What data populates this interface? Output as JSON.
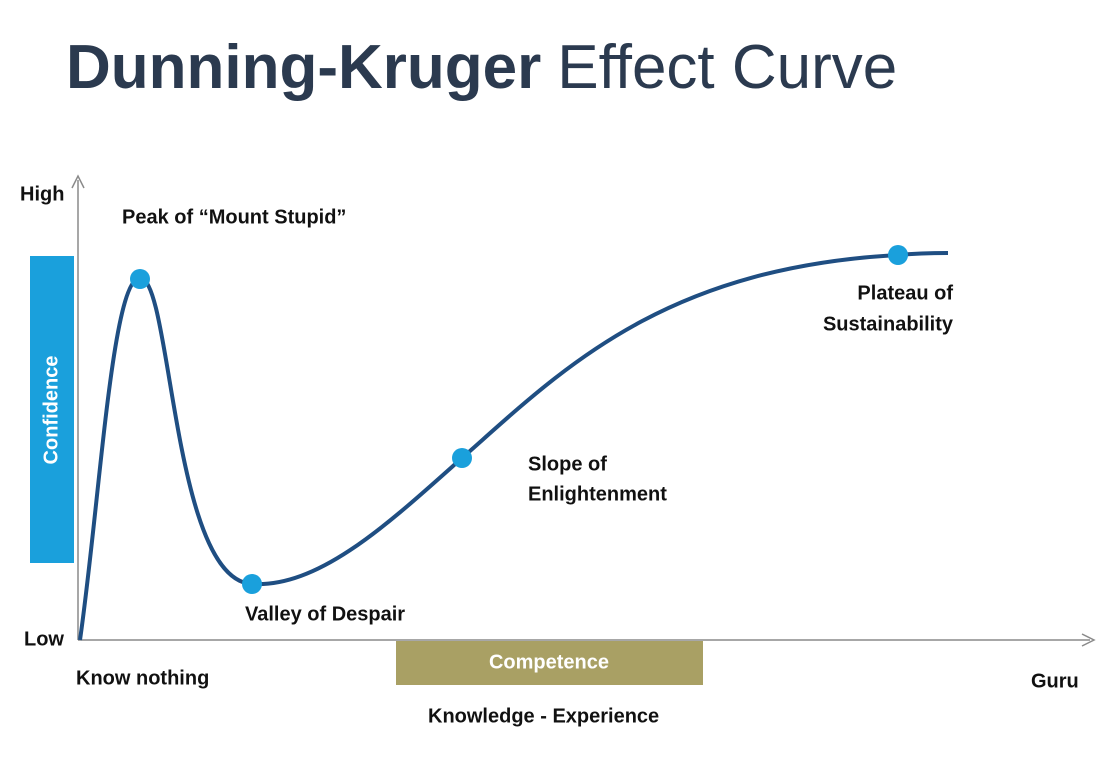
{
  "title": {
    "bold": "Dunning-Kruger",
    "regular": "Effect Curve"
  },
  "axes": {
    "y_high": "High",
    "y_low": "Low",
    "y_label": "Confidence",
    "x_start": "Know nothing",
    "x_end": "Guru",
    "x_label": "Competence",
    "x_caption": "Knowledge - Experience"
  },
  "stages": [
    {
      "label": [
        "Peak of “Mount Stupid”"
      ]
    },
    {
      "label": [
        "Valley of Despair"
      ]
    },
    {
      "label": [
        "Slope of",
        "Enlightenment"
      ]
    },
    {
      "label": [
        "Plateau of",
        "Sustainability"
      ]
    }
  ]
}
